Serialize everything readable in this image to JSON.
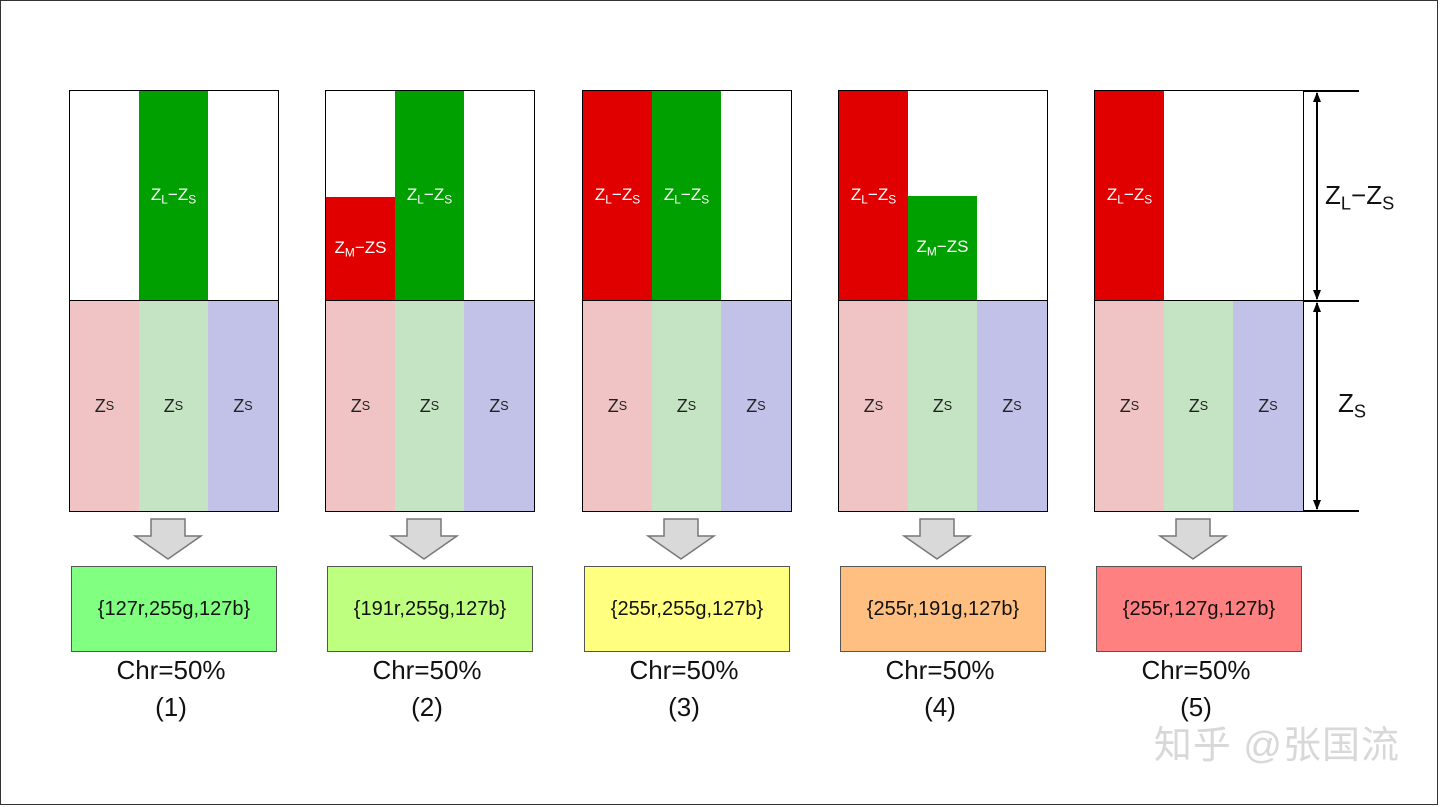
{
  "zl_minus_zs": {
    "z": "Z",
    "l": "L",
    "dash": "−",
    "z2": "Z",
    "s": "S"
  },
  "zm_minus_zs": {
    "z": "Z",
    "m": "M",
    "rest": "−ZS"
  },
  "zs": {
    "z": "Z",
    "s": "S"
  },
  "columns": [
    {
      "result": "{127r,255g,127b}",
      "result_color": "#80ff80",
      "chr": "Chr=50%",
      "num": "(1)"
    },
    {
      "result": "{191r,255g,127b}",
      "result_color": "#bfff80",
      "chr": "Chr=50%",
      "num": "(2)"
    },
    {
      "result": "{255r,255g,127b}",
      "result_color": "#ffff80",
      "chr": "Chr=50%",
      "num": "(3)"
    },
    {
      "result": "{255r,191g,127b}",
      "result_color": "#ffbf80",
      "chr": "Chr=50%",
      "num": "(4)"
    },
    {
      "result": "{255r,127g,127b}",
      "result_color": "#ff8080",
      "chr": "Chr=50%",
      "num": "(5)"
    }
  ],
  "colors": {
    "red": "#e00000",
    "green": "#00a000",
    "pink": "#f0c4c4",
    "light_green": "#c4e4c4",
    "light_blue": "#c2c2e8"
  },
  "watermark": "知乎 @张国流"
}
